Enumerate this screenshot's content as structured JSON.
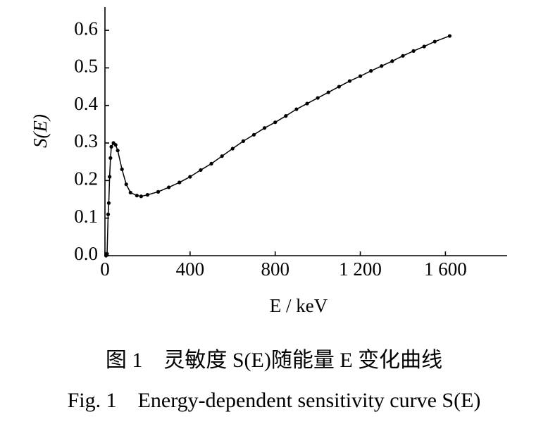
{
  "chart_data": {
    "type": "line",
    "ylabel": "S(E)",
    "xlabel": "E / keV",
    "caption_cn": "图 1　灵敏度 S(E)随能量 E 变化曲线",
    "caption_en": "Fig. 1　Energy-dependent sensitivity curve S(E)",
    "x": [
      5,
      10,
      15,
      18,
      22,
      26,
      30,
      40,
      50,
      60,
      80,
      100,
      120,
      150,
      170,
      200,
      250,
      300,
      350,
      400,
      450,
      500,
      550,
      600,
      650,
      700,
      750,
      800,
      850,
      900,
      950,
      1000,
      1050,
      1100,
      1150,
      1200,
      1250,
      1300,
      1350,
      1400,
      1450,
      1500,
      1550,
      1620
    ],
    "series": [
      {
        "color": "#000000",
        "values": [
          0.0,
          0.005,
          0.11,
          0.14,
          0.21,
          0.26,
          0.29,
          0.3,
          0.295,
          0.28,
          0.23,
          0.19,
          0.168,
          0.16,
          0.158,
          0.162,
          0.17,
          0.182,
          0.195,
          0.21,
          0.228,
          0.245,
          0.265,
          0.285,
          0.305,
          0.322,
          0.34,
          0.355,
          0.372,
          0.39,
          0.405,
          0.42,
          0.435,
          0.45,
          0.465,
          0.478,
          0.492,
          0.505,
          0.518,
          0.532,
          0.545,
          0.557,
          0.57,
          0.585
        ]
      }
    ],
    "xlim": [
      0,
      1890
    ],
    "ylim": [
      0,
      0.662
    ],
    "xticks": [
      0,
      400,
      800,
      {
        "value": 1200,
        "label": "1 200"
      },
      {
        "value": 1600,
        "label": "1 600"
      }
    ],
    "yticks": [
      {
        "value": 0,
        "label": "0.0"
      },
      0.1,
      0.2,
      0.3,
      0.4,
      0.5,
      0.6
    ]
  }
}
